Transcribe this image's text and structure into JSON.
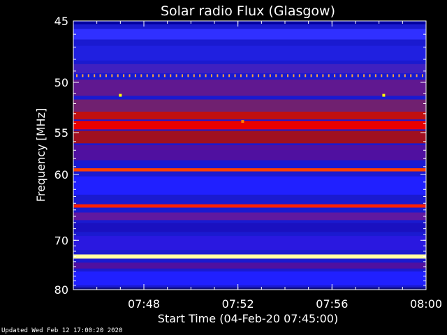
{
  "chart_data": {
    "type": "heatmap",
    "title": "Solar radio Flux (Glasgow)",
    "xlabel": "Start Time (04-Feb-20 07:45:00)",
    "ylabel": "Frequency [MHz]",
    "x_ticks": [
      {
        "value": 3,
        "label": "07:48"
      },
      {
        "value": 7,
        "label": "07:52"
      },
      {
        "value": 11,
        "label": "07:56"
      },
      {
        "value": 15,
        "label": "08:00"
      }
    ],
    "y_ticks": [
      {
        "value": 45,
        "label": "45"
      },
      {
        "value": 50,
        "label": "50"
      },
      {
        "value": 55,
        "label": "55"
      },
      {
        "value": 60,
        "label": "60"
      },
      {
        "value": 70,
        "label": "70"
      },
      {
        "value": 80,
        "label": "80"
      }
    ],
    "xlim": [
      0,
      15
    ],
    "ylim": [
      80,
      45
    ],
    "y_scale": "reciprocal",
    "colormap": [
      "#000080",
      "#1a1aff",
      "#8000a0",
      "#e00000",
      "#ff8000",
      "#ffff80",
      "#ffffff"
    ],
    "bands": [
      {
        "mhz": 45.0,
        "color": "#0000a0",
        "height": 0.5
      },
      {
        "mhz": 46.0,
        "color": "#3030ff",
        "height": 0.8
      },
      {
        "mhz": 47.5,
        "color": "#2020e0",
        "height": 1.2
      },
      {
        "mhz": 48.8,
        "color": "#4020c0",
        "height": 0.8
      },
      {
        "mhz": 50.5,
        "color": "#601890",
        "height": 1.5
      },
      {
        "mhz": 52.3,
        "color": "#702070",
        "height": 1.4
      },
      {
        "mhz": 53.2,
        "color": "#c01010",
        "height": 0.8
      },
      {
        "mhz": 54.2,
        "color": "#e80000",
        "height": 0.9
      },
      {
        "mhz": 55.5,
        "color": "#a01020",
        "height": 1.4
      },
      {
        "mhz": 57.3,
        "color": "#5010a0",
        "height": 1.8
      },
      {
        "mhz": 59.4,
        "color": "#ff4000",
        "height": 0.4
      },
      {
        "mhz": 61.5,
        "color": "#2020ff",
        "height": 2.5
      },
      {
        "mhz": 64.4,
        "color": "#ff2000",
        "height": 0.5
      },
      {
        "mhz": 66.0,
        "color": "#6018a0",
        "height": 1.2
      },
      {
        "mhz": 67.8,
        "color": "#1a10c0",
        "height": 1.5
      },
      {
        "mhz": 70.5,
        "color": "#2a18e0",
        "height": 2.5
      },
      {
        "mhz": 73.0,
        "color": "#ffffa0",
        "height": 0.8
      },
      {
        "mhz": 74.8,
        "color": "#5010a0",
        "height": 1.2
      },
      {
        "mhz": 77.5,
        "color": "#2020ff",
        "height": 3.0
      },
      {
        "mhz": 80.0,
        "color": "#101080",
        "height": 1.0
      }
    ],
    "comb_mhz": 49.4,
    "comb_count": 60,
    "bursts": [
      {
        "t": 2.0,
        "mhz": 51.2,
        "color": "#ffff00"
      },
      {
        "t": 13.2,
        "mhz": 51.2,
        "color": "#ffff00"
      },
      {
        "t": 7.2,
        "mhz": 53.8,
        "color": "#ff8000"
      }
    ]
  },
  "footer": "Updated Wed Feb 12 17:00:20 2020"
}
